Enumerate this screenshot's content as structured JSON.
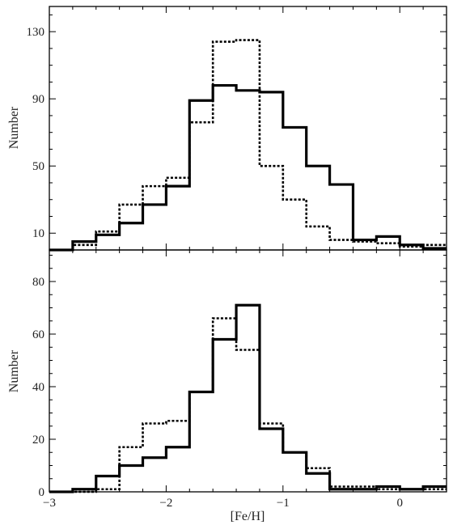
{
  "chart_data": [
    {
      "type": "histogram",
      "panel": "top",
      "ylabel": "Number",
      "xlabel": "",
      "xlim": [
        -3.0,
        0.4
      ],
      "ylim": [
        0,
        145
      ],
      "yticks": [
        10,
        50,
        90,
        130
      ],
      "ytick_labels": [
        "10",
        "50",
        "90",
        "130"
      ],
      "bin_edges": [
        -2.8,
        -2.6,
        -2.4,
        -2.2,
        -2.0,
        -1.8,
        -1.6,
        -1.4,
        -1.2,
        -1.0,
        -0.8,
        -0.6,
        -0.4,
        -0.2,
        0.0,
        0.2,
        0.4
      ],
      "series": [
        {
          "style": "solid",
          "color": "#000000",
          "values": [
            5,
            9,
            16,
            27,
            38,
            89,
            98,
            95,
            94,
            73,
            50,
            39,
            6,
            8,
            3,
            1
          ]
        },
        {
          "style": "dotted",
          "color": "#000000",
          "values": [
            3,
            11,
            27,
            38,
            43,
            76,
            124,
            125,
            50,
            30,
            14,
            6,
            5,
            4,
            2,
            3
          ]
        }
      ]
    },
    {
      "type": "histogram",
      "panel": "bottom",
      "ylabel": "Number",
      "xlabel": "[Fe/H]",
      "xlim": [
        -3.0,
        0.4
      ],
      "ylim": [
        0,
        92
      ],
      "yticks": [
        0,
        20,
        40,
        60,
        80
      ],
      "ytick_labels": [
        "0",
        "20",
        "40",
        "60",
        "80"
      ],
      "xticks": [
        -3,
        -2,
        -1,
        0
      ],
      "xtick_labels": [
        "−3",
        "−2",
        "−1",
        "0"
      ],
      "bin_edges": [
        -2.8,
        -2.6,
        -2.4,
        -2.2,
        -2.0,
        -1.8,
        -1.6,
        -1.4,
        -1.2,
        -1.0,
        -0.8,
        -0.6,
        -0.4,
        -0.2,
        0.0,
        0.2,
        0.4
      ],
      "series": [
        {
          "style": "solid",
          "color": "#000000",
          "values": [
            1,
            6,
            10,
            13,
            17,
            38,
            58,
            71,
            24,
            15,
            7,
            1,
            1,
            2,
            1,
            2
          ]
        },
        {
          "style": "dotted",
          "color": "#000000",
          "values": [
            0,
            1,
            17,
            26,
            27,
            38,
            66,
            54,
            26,
            15,
            9,
            2,
            2,
            1,
            1,
            1
          ]
        }
      ]
    }
  ]
}
